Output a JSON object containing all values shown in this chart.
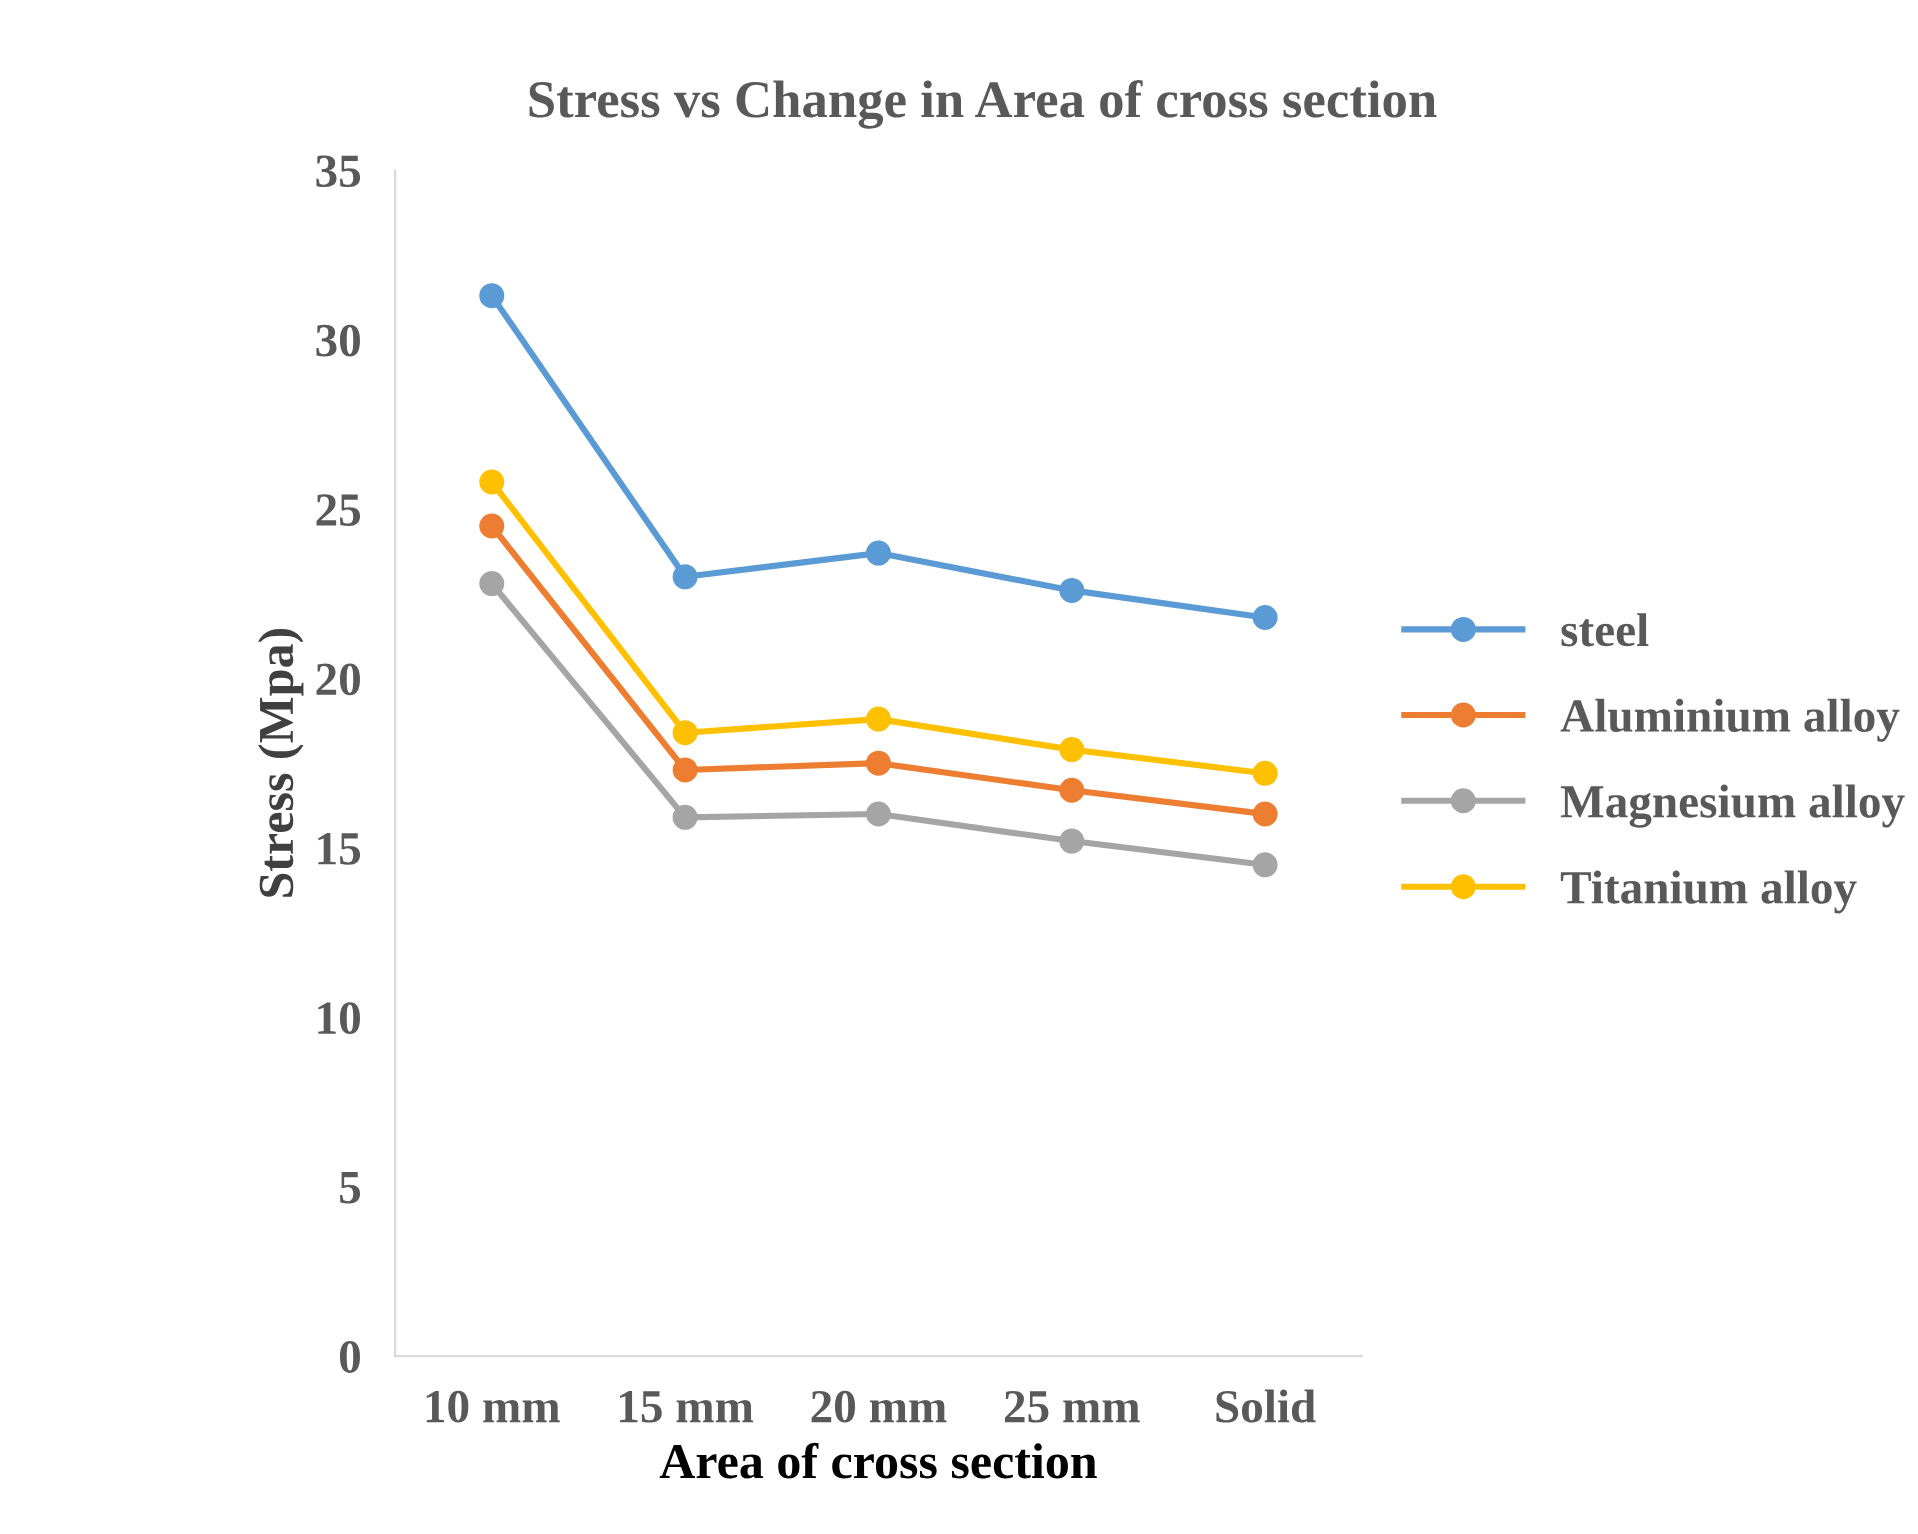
{
  "chart_data": {
    "type": "line",
    "title": "Stress vs Change in Area of cross section",
    "xlabel": "Area of cross section",
    "ylabel": "Stress (Mpa)",
    "categories": [
      "10 mm",
      "15 mm",
      "20 mm",
      "25 mm",
      "Solid"
    ],
    "series": [
      {
        "name": "steel",
        "color": "#5b9bd5",
        "values": [
          31.3,
          23.0,
          23.7,
          22.6,
          21.8
        ]
      },
      {
        "name": "Aluminium alloy",
        "color": "#ed7d31",
        "values": [
          24.5,
          17.3,
          17.5,
          16.7,
          16.0
        ]
      },
      {
        "name": "Magnesium alloy",
        "color": "#a5a5a5",
        "values": [
          22.8,
          15.9,
          16.0,
          15.2,
          14.5
        ]
      },
      {
        "name": "Titanium alloy",
        "color": "#ffc000",
        "values": [
          25.8,
          18.4,
          18.8,
          17.9,
          17.2
        ]
      }
    ],
    "ylim": [
      0,
      35
    ],
    "yticks": [
      0,
      5,
      10,
      15,
      20,
      25,
      30,
      35
    ],
    "grid": false,
    "legend": "right",
    "marker": "circle",
    "line_style": "solid"
  }
}
